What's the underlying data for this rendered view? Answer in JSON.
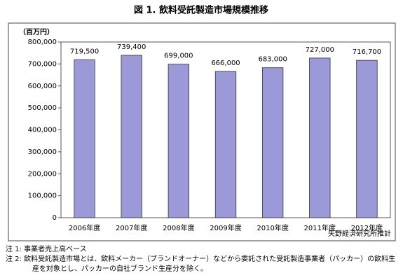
{
  "chart_data": {
    "type": "bar",
    "title": "図 1. 飲料受託製造市場規模推移",
    "y_unit_label": "（百万円）",
    "categories": [
      "2006年度",
      "2007年度",
      "2008年度",
      "2009年度",
      "2010年度",
      "2011年度",
      "2012年度"
    ],
    "values": [
      719500,
      739400,
      699000,
      666000,
      683000,
      727000,
      716700
    ],
    "value_labels": [
      "719,500",
      "739,400",
      "699,000",
      "666,000",
      "683,000",
      "727,000",
      "716,700"
    ],
    "color": "#9b99d8",
    "ylim": [
      0,
      800000
    ],
    "yticks": [
      {
        "value": 0,
        "label": "0"
      },
      {
        "value": 100000,
        "label": "100,000"
      },
      {
        "value": 200000,
        "label": "200,000"
      },
      {
        "value": 300000,
        "label": "300,000"
      },
      {
        "value": 400000,
        "label": "400,000"
      },
      {
        "value": 500000,
        "label": "500,000"
      },
      {
        "value": 600000,
        "label": "600,000"
      },
      {
        "value": 700000,
        "label": "700,000"
      },
      {
        "value": 800000,
        "label": "800,000"
      }
    ],
    "grid": false,
    "source": "矢野経済研究所推計"
  },
  "notes": [
    "注 1: 事業者売上高ベース",
    "注 2: 飲料受託製造市場とは、飲料メーカー（ブランドオーナー）などから委託された受託製造事業者（パッカー）の飲料生産を対象とし、パッカーの自社ブランド生産分を除く。"
  ]
}
